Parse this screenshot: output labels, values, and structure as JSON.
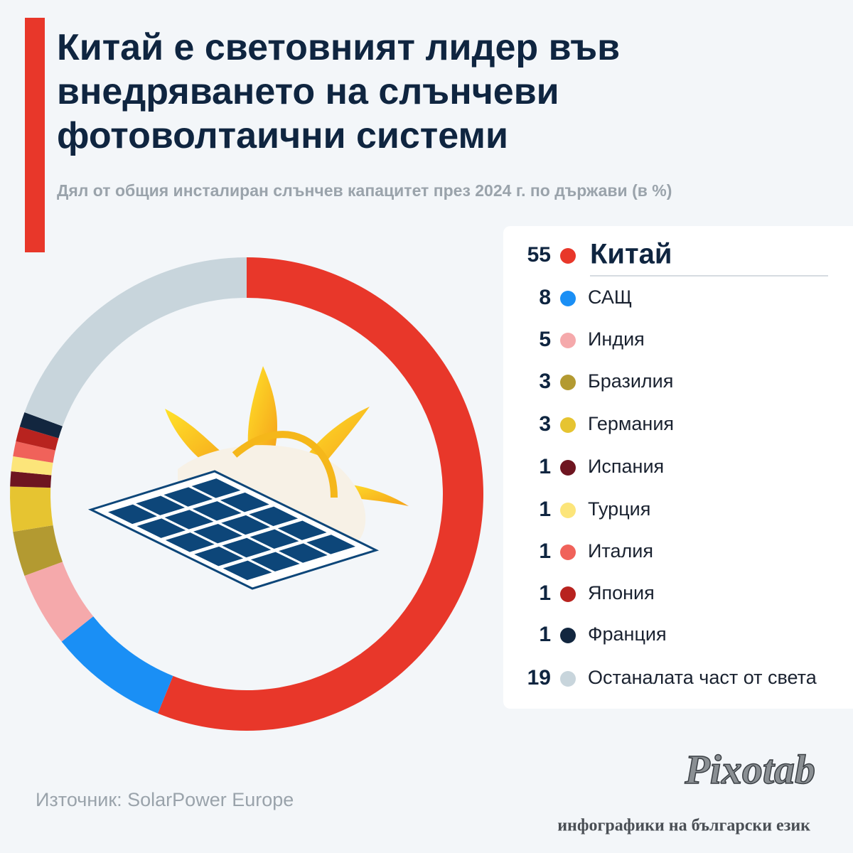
{
  "chart_data": {
    "type": "donut",
    "title": "Китай е световният лидер във внедряването на слънчеви фотоволтаични системи",
    "subtitle": "Дял от общия инсталиран слънчев капацитет през 2024 г. по държави (в %)",
    "categories": [
      "Китай",
      "САЩ",
      "Индия",
      "Бразилия",
      "Германия",
      "Испания",
      "Турция",
      "Италия",
      "Япония",
      "Франция",
      "Останалата част от света"
    ],
    "values": [
      55,
      8,
      5,
      3,
      3,
      1,
      1,
      1,
      1,
      1,
      19
    ],
    "colors": [
      "#e8372a",
      "#1a8ff5",
      "#f5a9ab",
      "#b39a31",
      "#e6c431",
      "#6e1520",
      "#fce57a",
      "#f0625a",
      "#b8231f",
      "#12263f",
      "#c8d5dc"
    ]
  },
  "footer": {
    "source": "Източник: SolarPower Europe",
    "brand": "Pixotab",
    "tagline": "инфографики на български език"
  }
}
